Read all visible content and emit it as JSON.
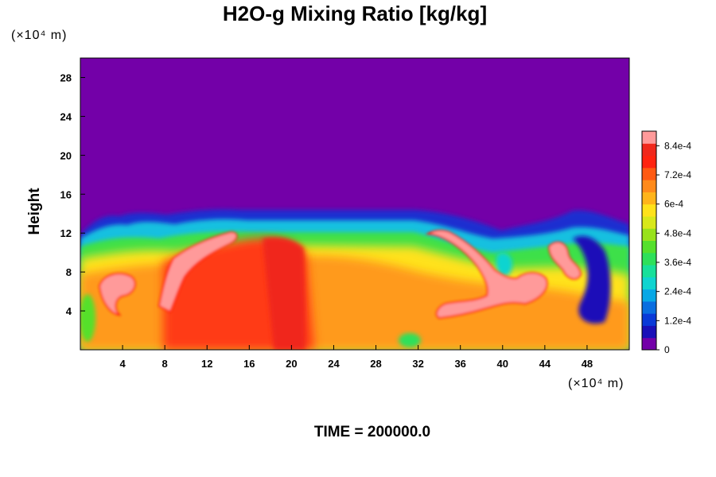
{
  "chart_data": {
    "type": "heatmap",
    "title": "H2O-g Mixing Ratio [kg/kg]",
    "xlabel": "",
    "ylabel": "Height",
    "x_unit": "(×10⁴ m)",
    "y_unit": "(×10⁴ m)",
    "xlim": [
      0,
      52
    ],
    "ylim": [
      0,
      30
    ],
    "x_ticks": [
      4,
      8,
      12,
      16,
      20,
      24,
      28,
      32,
      36,
      40,
      44,
      48
    ],
    "y_ticks": [
      4,
      8,
      12,
      16,
      20,
      24,
      28
    ],
    "annotation": "TIME = 200000.0",
    "colorbar": {
      "min": 0,
      "max": 0.0009,
      "tick_labels": [
        "0",
        "1.2e-4",
        "2.4e-4",
        "3.6e-4",
        "4.8e-4",
        "6e-4",
        "7.2e-4",
        "8.4e-4"
      ],
      "tick_values": [
        0,
        0.00012,
        0.00024,
        0.00036,
        0.00048,
        0.0006,
        0.00072,
        0.00084
      ],
      "colors": [
        "#7300a8",
        "#1a10b8",
        "#0a3ad8",
        "#0a6ee0",
        "#08a8e6",
        "#10d4d0",
        "#18e09a",
        "#2ee05a",
        "#55e02c",
        "#98e21c",
        "#d8e81a",
        "#ffe21a",
        "#ffb41a",
        "#ff8a1a",
        "#ff5a12",
        "#ff2410",
        "#f0281c",
        "#ff9a9a"
      ]
    },
    "field_description": {
      "background_value": 0,
      "moist_layer_top": 14,
      "regions": [
        {
          "x": [
            0,
            52
          ],
          "y": [
            0,
            11
          ],
          "approx_value": 0.0006
        },
        {
          "x": [
            9,
            21
          ],
          "y": [
            0,
            11
          ],
          "approx_value": 0.00078
        },
        {
          "x": [
            36,
            44
          ],
          "y": [
            3,
            9
          ],
          "approx_value": 0.00088
        }
      ]
    }
  },
  "colors": {
    "background": "#7300a8",
    "axis": "#000000"
  }
}
